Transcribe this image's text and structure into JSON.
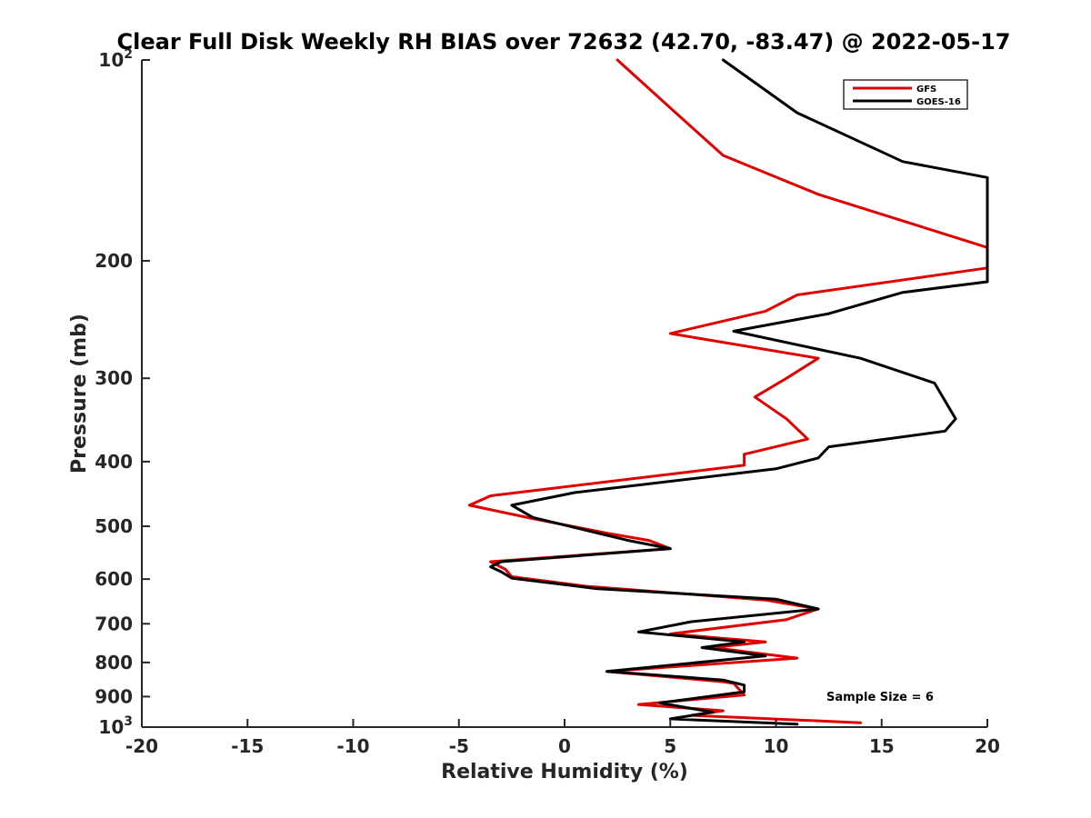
{
  "chart_data": {
    "type": "line",
    "title": "Clear Full Disk Weekly RH BIAS over 72632 (42.70, -83.47) @ 2022-05-17",
    "xlabel": "Relative Humidity (%)",
    "ylabel": "Pressure (mb)",
    "xlim": [
      -20,
      20
    ],
    "ylim": [
      100,
      1000
    ],
    "y_scale": "log",
    "y_reversed": true,
    "grid": false,
    "legend_position": "top-right",
    "x_ticks": [
      {
        "value": -20,
        "label": "-20"
      },
      {
        "value": -15,
        "label": "-15"
      },
      {
        "value": -10,
        "label": "-10"
      },
      {
        "value": -5,
        "label": "-5"
      },
      {
        "value": 0,
        "label": "0"
      },
      {
        "value": 5,
        "label": "5"
      },
      {
        "value": 10,
        "label": "10"
      },
      {
        "value": 15,
        "label": "15"
      },
      {
        "value": 20,
        "label": "20"
      }
    ],
    "y_ticks": [
      {
        "value": 100,
        "base": "10",
        "exp": "2"
      },
      {
        "value": 200,
        "base": "200",
        "exp": ""
      },
      {
        "value": 300,
        "base": "300",
        "exp": ""
      },
      {
        "value": 400,
        "base": "400",
        "exp": ""
      },
      {
        "value": 500,
        "base": "500",
        "exp": ""
      },
      {
        "value": 600,
        "base": "600",
        "exp": ""
      },
      {
        "value": 700,
        "base": "700",
        "exp": ""
      },
      {
        "value": 800,
        "base": "800",
        "exp": ""
      },
      {
        "value": 900,
        "base": "900",
        "exp": ""
      },
      {
        "value": 1000,
        "base": "10",
        "exp": "3"
      }
    ],
    "series": [
      {
        "name": "GFS",
        "color": "#e00000",
        "points": [
          {
            "x": 14.0,
            "y": 985
          },
          {
            "x": 6.0,
            "y": 960
          },
          {
            "x": 7.5,
            "y": 945
          },
          {
            "x": 3.5,
            "y": 925
          },
          {
            "x": 8.5,
            "y": 895
          },
          {
            "x": 8.0,
            "y": 860
          },
          {
            "x": 7.5,
            "y": 855
          },
          {
            "x": 2.0,
            "y": 825
          },
          {
            "x": 11.0,
            "y": 788
          },
          {
            "x": 7.0,
            "y": 760
          },
          {
            "x": 9.5,
            "y": 745
          },
          {
            "x": 5.0,
            "y": 725
          },
          {
            "x": 10.5,
            "y": 690
          },
          {
            "x": 12.0,
            "y": 665
          },
          {
            "x": 9.5,
            "y": 645
          },
          {
            "x": 1.0,
            "y": 615
          },
          {
            "x": -2.5,
            "y": 595
          },
          {
            "x": -2.8,
            "y": 580
          },
          {
            "x": -3.5,
            "y": 565
          },
          {
            "x": 5.0,
            "y": 540
          },
          {
            "x": 4.0,
            "y": 525
          },
          {
            "x": 2.0,
            "y": 512
          },
          {
            "x": -1.5,
            "y": 487
          },
          {
            "x": -4.5,
            "y": 465
          },
          {
            "x": -3.5,
            "y": 450
          },
          {
            "x": 8.5,
            "y": 405
          },
          {
            "x": 8.5,
            "y": 390
          },
          {
            "x": 11.5,
            "y": 370
          },
          {
            "x": 10.5,
            "y": 345
          },
          {
            "x": 9.0,
            "y": 320
          },
          {
            "x": 10.5,
            "y": 300
          },
          {
            "x": 12.0,
            "y": 280
          },
          {
            "x": 5.0,
            "y": 257
          },
          {
            "x": 9.5,
            "y": 238
          },
          {
            "x": 11.0,
            "y": 225
          },
          {
            "x": 20.0,
            "y": 205
          },
          {
            "x": 20.0,
            "y": 191
          },
          {
            "x": 12.0,
            "y": 159
          },
          {
            "x": 7.5,
            "y": 139
          },
          {
            "x": 5.0,
            "y": 118
          },
          {
            "x": 2.5,
            "y": 100
          }
        ]
      },
      {
        "name": "GOES-16",
        "color": "#000000",
        "points": [
          {
            "x": 11.0,
            "y": 990
          },
          {
            "x": 5.0,
            "y": 972
          },
          {
            "x": 7.0,
            "y": 950
          },
          {
            "x": 4.5,
            "y": 920
          },
          {
            "x": 8.5,
            "y": 885
          },
          {
            "x": 8.5,
            "y": 865
          },
          {
            "x": 7.5,
            "y": 850
          },
          {
            "x": 2.0,
            "y": 825
          },
          {
            "x": 9.5,
            "y": 782
          },
          {
            "x": 6.5,
            "y": 760
          },
          {
            "x": 8.5,
            "y": 745
          },
          {
            "x": 3.5,
            "y": 720
          },
          {
            "x": 6.0,
            "y": 695
          },
          {
            "x": 12.0,
            "y": 665
          },
          {
            "x": 10.0,
            "y": 643
          },
          {
            "x": 1.5,
            "y": 620
          },
          {
            "x": -2.5,
            "y": 598
          },
          {
            "x": -3.0,
            "y": 585
          },
          {
            "x": -3.5,
            "y": 575
          },
          {
            "x": -3.0,
            "y": 565
          },
          {
            "x": 5.0,
            "y": 540
          },
          {
            "x": 3.0,
            "y": 525
          },
          {
            "x": -1.5,
            "y": 485
          },
          {
            "x": -2.5,
            "y": 465
          },
          {
            "x": 0.5,
            "y": 445
          },
          {
            "x": 10.0,
            "y": 410
          },
          {
            "x": 12.0,
            "y": 395
          },
          {
            "x": 12.5,
            "y": 380
          },
          {
            "x": 18.0,
            "y": 360
          },
          {
            "x": 18.5,
            "y": 345
          },
          {
            "x": 17.5,
            "y": 305
          },
          {
            "x": 14.0,
            "y": 280
          },
          {
            "x": 8.0,
            "y": 255
          },
          {
            "x": 12.5,
            "y": 240
          },
          {
            "x": 16.0,
            "y": 223
          },
          {
            "x": 20.0,
            "y": 215
          },
          {
            "x": 20.0,
            "y": 150
          },
          {
            "x": 16.0,
            "y": 142
          },
          {
            "x": 11.0,
            "y": 120
          },
          {
            "x": 7.5,
            "y": 100
          }
        ]
      }
    ],
    "annotation": "Sample Size = 6"
  }
}
